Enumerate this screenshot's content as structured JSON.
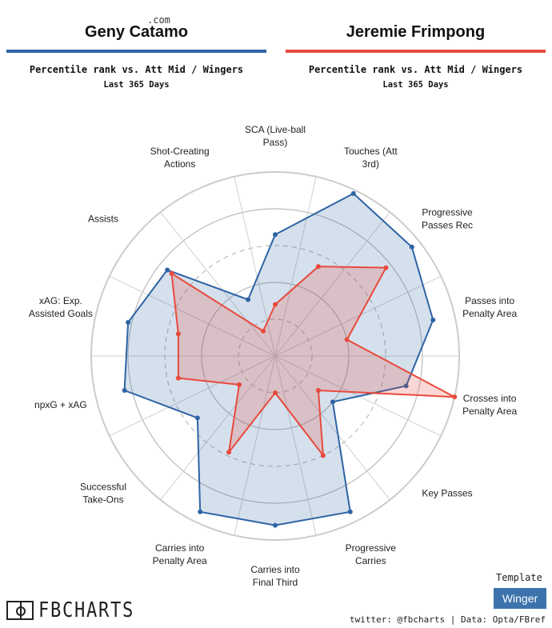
{
  "players": [
    {
      "name": "Geny Catamo",
      "color": "#2e64a4",
      "subtitle": "Percentile rank vs. Att Mid / Wingers",
      "period": "Last 365 Days"
    },
    {
      "name": "Jeremie Frimpong",
      "color": "#e84a3c",
      "subtitle": "Percentile rank vs. Att Mid / Wingers",
      "period": "Last 365 Days"
    }
  ],
  "template": {
    "label": "Template",
    "value": "Winger"
  },
  "footer": {
    "logo": "FBCHARTS",
    "logo_suffix": ".com",
    "credit": "twitter: @fbcharts | Data: Opta/FBref"
  },
  "chart_data": {
    "type": "radar",
    "axis_range": [
      0,
      100
    ],
    "ring_levels": [
      20,
      40,
      60,
      80,
      100
    ],
    "grid": true,
    "categories": [
      "Touches (Att 3rd)",
      "Progressive Passes Rec",
      "Passes into Penalty Area",
      "Crosses into Penalty Area",
      "Key Passes",
      "Progressive Carries",
      "Carries into Final Third",
      "Carries into Penalty Area",
      "Successful Take-Ons",
      "npxG + xAG",
      "xAG: Exp. Assisted Goals",
      "Assists",
      "Shot-Creating Actions",
      "SCA (Live-ball Pass)"
    ],
    "category_lines": [
      [
        "Touches (Att",
        "3rd)"
      ],
      [
        "Progressive",
        "Passes Rec"
      ],
      [
        "Passes into",
        "Penalty Area"
      ],
      [
        "Crosses into",
        "Penalty Area"
      ],
      [
        "Key Passes"
      ],
      [
        "Progressive",
        "Carries"
      ],
      [
        "Carries into",
        "Final Third"
      ],
      [
        "Carries into",
        "Penalty Area"
      ],
      [
        "Successful",
        "Take-Ons"
      ],
      [
        "npxG + xAG"
      ],
      [
        "xAG: Exp.",
        "Assisted Goals"
      ],
      [
        "Assists"
      ],
      [
        "Shot-Creating",
        "Actions"
      ],
      [
        "SCA (Live-ball",
        "Pass)"
      ]
    ],
    "series": [
      {
        "name": "Geny Catamo",
        "color": "#2e64a4",
        "fill": "rgba(46,100,164,0.20)",
        "values": [
          98,
          95,
          88,
          73,
          40,
          94,
          92,
          94,
          54,
          84,
          82,
          75,
          34,
          66
        ]
      },
      {
        "name": "Jeremie Frimpong",
        "color": "#e84a3c",
        "fill": "rgba(232,74,60,0.22)",
        "values": [
          54,
          77,
          40,
          100,
          30,
          60,
          20,
          58,
          25,
          54,
          54,
          72,
          15,
          28
        ]
      }
    ]
  }
}
